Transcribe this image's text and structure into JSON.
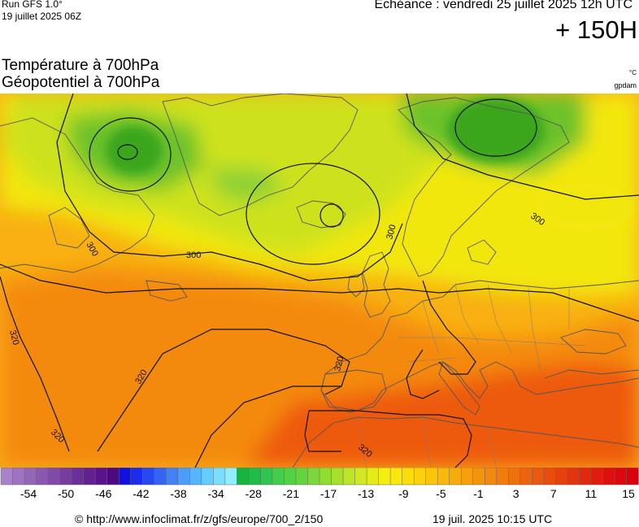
{
  "header": {
    "run": "Run GFS 1.0°",
    "run_date": "19 juillet 2025 06Z",
    "echeance": "Echéance : vendredi 25 juillet 2025 12h UTC",
    "lead_time": "+ 150H"
  },
  "titles": {
    "line1": "Température à 700hPa",
    "line2": "Géopotentiel à 700hPa"
  },
  "units": {
    "temperature": "°C",
    "geopotential": "gpdam"
  },
  "map": {
    "contour_labels": [
      "300",
      "300",
      "300",
      "300",
      "320",
      "320",
      "320",
      "320",
      "320"
    ],
    "colors": {
      "cold_core": "#3aa61e",
      "green": "#6cc22c",
      "yellow_green": "#cde21a",
      "yellow": "#f2e70e",
      "orange_light": "#f8b012",
      "orange": "#f48a0e",
      "red_orange": "#ee5a0c",
      "land_line": "#555555",
      "contour_line": "#111111"
    }
  },
  "color_scale": {
    "tick_labels": [
      "-54",
      "-50",
      "-46",
      "-42",
      "-38",
      "-34",
      "-28",
      "-21",
      "-17",
      "-13",
      "-9",
      "-5",
      "-1",
      "3",
      "7",
      "11",
      "15"
    ],
    "swatches": [
      "#a882c8",
      "#9e74c0",
      "#9466b8",
      "#8a58b0",
      "#804aa8",
      "#763ca0",
      "#6c2e98",
      "#622090",
      "#581488",
      "#4e0880",
      "#1010e0",
      "#1c2cec",
      "#2848f0",
      "#3464f4",
      "#4080f8",
      "#4c9cfa",
      "#58b4fc",
      "#64ccfe",
      "#78e0fe",
      "#90eefe",
      "#18b440",
      "#20bc48",
      "#30c450",
      "#44cc4c",
      "#54d044",
      "#64d43c",
      "#7ad838",
      "#90dc30",
      "#a6e02c",
      "#bce428",
      "#d2e820",
      "#e4ec18",
      "#f2ee10",
      "#fae80c",
      "#fcdc0a",
      "#fcd00a",
      "#fcc40a",
      "#fab80a",
      "#f8ac0c",
      "#f6a00c",
      "#f4940e",
      "#f2880e",
      "#f07c0e",
      "#ee700e",
      "#ec640e",
      "#ea580e",
      "#e84c0e",
      "#e6400e",
      "#e4340e",
      "#e2280e",
      "#e01c0e",
      "#de100e",
      "#dc080e",
      "#da000e"
    ]
  },
  "footer": {
    "source": "© http://www.infoclimat.fr/z/gfs/europe/700_2/150",
    "generated": "19 juil. 2025 10:15 UTC"
  }
}
